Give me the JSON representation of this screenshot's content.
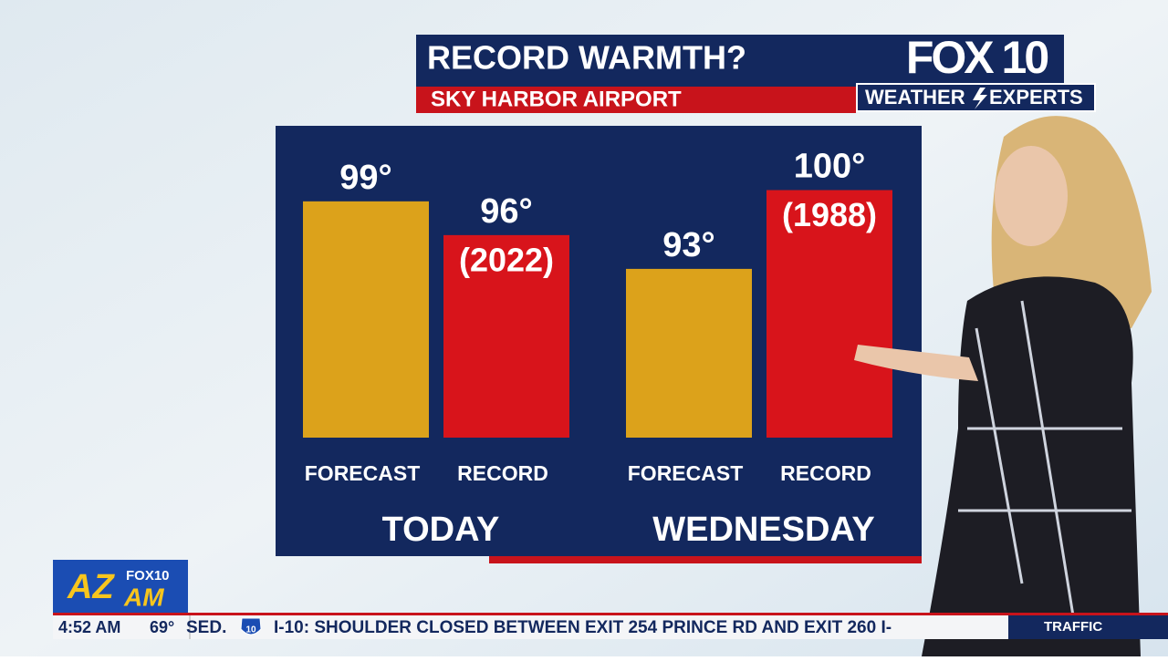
{
  "chart_data": {
    "type": "bar",
    "title": "RECORD WARMTH?",
    "subtitle": "SKY HARBOR AIRPORT",
    "categories": [
      "TODAY",
      "WEDNESDAY"
    ],
    "series": [
      {
        "name": "FORECAST",
        "color": "#dca21b",
        "values": [
          99,
          93
        ],
        "value_labels": [
          "99°",
          "93°"
        ]
      },
      {
        "name": "RECORD",
        "color": "#d8141b",
        "values": [
          96,
          100
        ],
        "value_labels": [
          "96°",
          "100°"
        ],
        "years": [
          "(2022)",
          "(1988)"
        ]
      }
    ],
    "ylim": [
      78,
      101.5
    ]
  },
  "branding": {
    "station": "FOX 10",
    "weather": "WEATHER",
    "experts": "EXPERTS",
    "show": "AZ",
    "show_am": "AM",
    "show_station": "FOX10"
  },
  "ticker": {
    "time": "4:52 AM",
    "temperature": "69°",
    "lead": "SED.",
    "shield": "10",
    "text": "I-10: SHOULDER CLOSED BETWEEN EXIT 254 PRINCE RD AND EXIT 260 I-",
    "section": "TRAFFIC"
  }
}
